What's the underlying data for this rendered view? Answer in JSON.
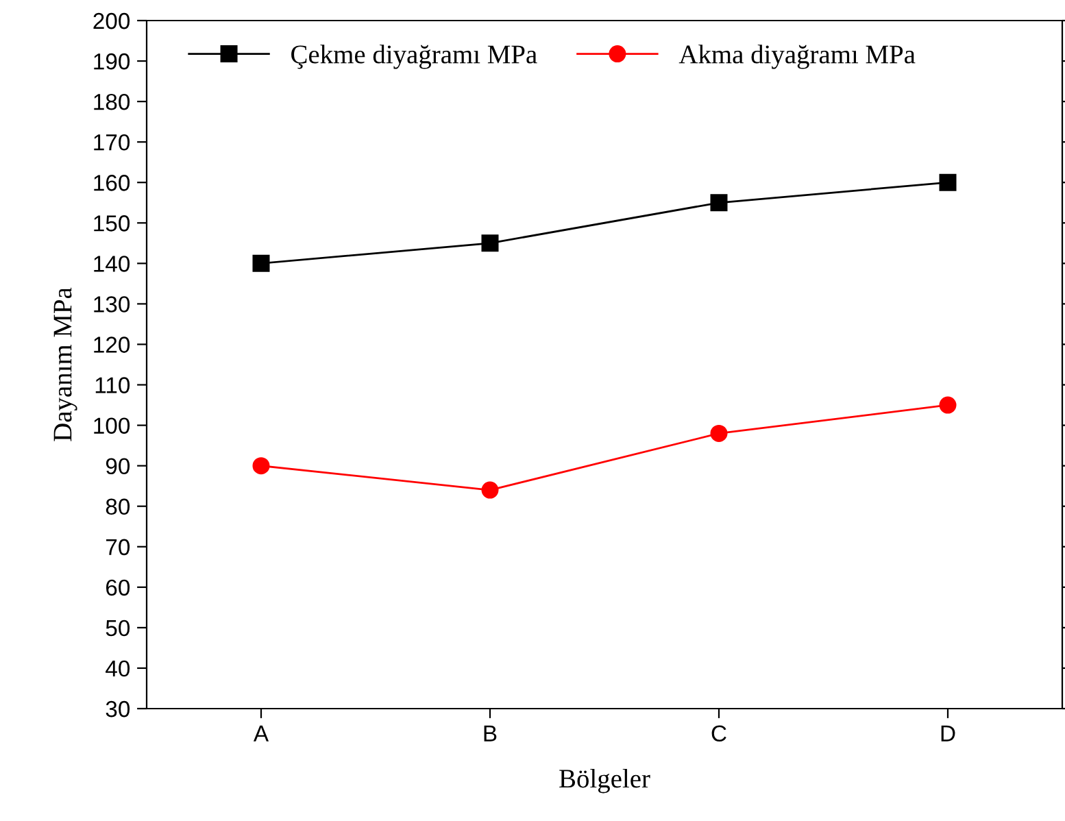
{
  "chart_data": {
    "type": "line",
    "xlabel": "Bölgeler",
    "ylabel": "Dayanım MPa",
    "categories": [
      "A",
      "B",
      "C",
      "D"
    ],
    "series": [
      {
        "name": "Çekme diyağramı MPa",
        "color": "#000000",
        "marker": "square",
        "values": [
          140,
          145,
          155,
          160
        ]
      },
      {
        "name": "Akma diyağramı MPa",
        "color": "#ff0000",
        "marker": "circle",
        "values": [
          90,
          84,
          98,
          105
        ]
      }
    ],
    "ylim": [
      30,
      200
    ],
    "yticks": [
      30,
      40,
      50,
      60,
      70,
      80,
      90,
      100,
      110,
      120,
      130,
      140,
      150,
      160,
      170,
      180,
      190,
      200
    ],
    "grid": false,
    "legend": "top",
    "line_style": "solid"
  }
}
